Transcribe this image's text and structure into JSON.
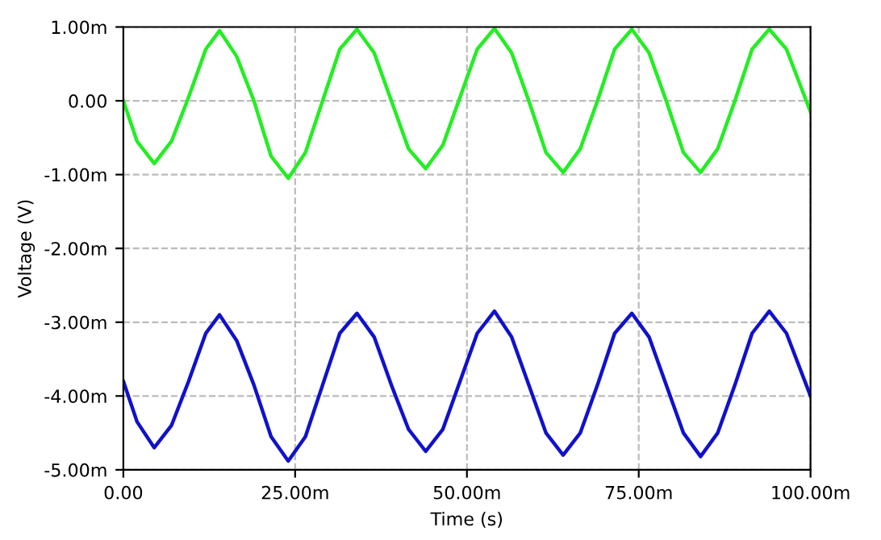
{
  "chart_data": {
    "type": "line",
    "xlabel": "Time (s)",
    "ylabel": "Voltage (V)",
    "xlim": [
      0,
      100
    ],
    "xticks": [
      {
        "value": 0,
        "label": "0.00"
      },
      {
        "value": 25,
        "label": "25.00m"
      },
      {
        "value": 50,
        "label": "50.00m"
      },
      {
        "value": 75,
        "label": "75.00m"
      },
      {
        "value": 100,
        "label": "100.00m"
      }
    ],
    "ylim": [
      -5,
      1
    ],
    "yticks": [
      {
        "value": 1,
        "label": "1.00m"
      },
      {
        "value": 0,
        "label": "0.00"
      },
      {
        "value": -1,
        "label": "-1.00m"
      },
      {
        "value": -2,
        "label": "-2.00m"
      },
      {
        "value": -3,
        "label": "-3.00m"
      },
      {
        "value": -4,
        "label": "-4.00m"
      },
      {
        "value": -5,
        "label": "-5.00m"
      }
    ],
    "grid": true,
    "marker": "none",
    "line_style": "solid",
    "x": [
      0,
      2,
      4.5,
      7,
      9.5,
      12,
      14,
      16.5,
      19,
      21.5,
      24,
      26.5,
      29,
      31.5,
      34,
      36.5,
      39,
      41.5,
      44,
      46.5,
      49,
      51.5,
      54,
      56.5,
      59,
      61.5,
      64,
      66.5,
      69,
      71.5,
      74,
      76.5,
      79,
      81.5,
      84,
      86.5,
      89,
      91.5,
      94,
      96.5,
      100
    ],
    "series": [
      {
        "color": "#22ee22",
        "values": [
          0.0,
          -0.55,
          -0.85,
          -0.55,
          0.05,
          0.7,
          0.95,
          0.6,
          0.0,
          -0.75,
          -1.05,
          -0.7,
          0.0,
          0.7,
          0.97,
          0.65,
          0.0,
          -0.65,
          -0.92,
          -0.6,
          0.05,
          0.7,
          0.98,
          0.65,
          0.0,
          -0.7,
          -0.97,
          -0.65,
          0.0,
          0.7,
          0.97,
          0.65,
          0.0,
          -0.7,
          -0.97,
          -0.65,
          0.0,
          0.7,
          0.97,
          0.7,
          -0.15
        ]
      },
      {
        "color": "#1111cc",
        "values": [
          -3.8,
          -4.35,
          -4.7,
          -4.4,
          -3.8,
          -3.15,
          -2.9,
          -3.25,
          -3.85,
          -4.55,
          -4.88,
          -4.55,
          -3.85,
          -3.15,
          -2.88,
          -3.2,
          -3.85,
          -4.45,
          -4.75,
          -4.45,
          -3.8,
          -3.15,
          -2.85,
          -3.2,
          -3.85,
          -4.5,
          -4.8,
          -4.5,
          -3.85,
          -3.15,
          -2.88,
          -3.2,
          -3.85,
          -4.5,
          -4.82,
          -4.5,
          -3.85,
          -3.15,
          -2.85,
          -3.15,
          -4.0
        ]
      }
    ]
  }
}
